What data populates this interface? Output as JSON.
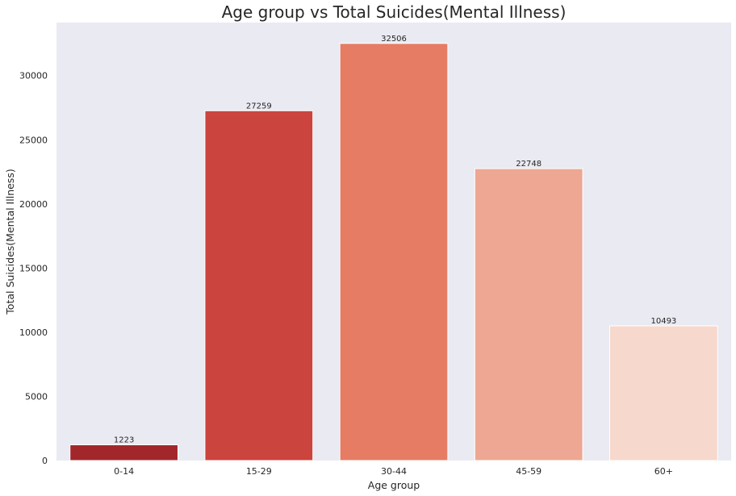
{
  "chart_data": {
    "type": "bar",
    "title": "Age group vs Total Suicides(Mental Illness)",
    "xlabel": "Age group",
    "ylabel": "Total Suicides(Mental Illness)",
    "categories": [
      "0-14",
      "15-29",
      "30-44",
      "45-59",
      "60+"
    ],
    "values": [
      1223,
      27259,
      32506,
      22748,
      10493
    ],
    "data_labels": [
      "1223",
      "27259",
      "32506",
      "22748",
      "10493"
    ],
    "ylim": [
      0,
      34131
    ],
    "yticks": [
      0,
      5000,
      10000,
      15000,
      20000,
      25000,
      30000
    ],
    "ytick_labels": [
      "0",
      "5000",
      "10000",
      "15000",
      "20000",
      "25000",
      "30000"
    ],
    "colors": [
      "#a1272b",
      "#cb443d",
      "#e67c63",
      "#eda792",
      "#f7d8cc"
    ],
    "background_color": "#eaeaf2",
    "grid": false,
    "legend": "none"
  }
}
